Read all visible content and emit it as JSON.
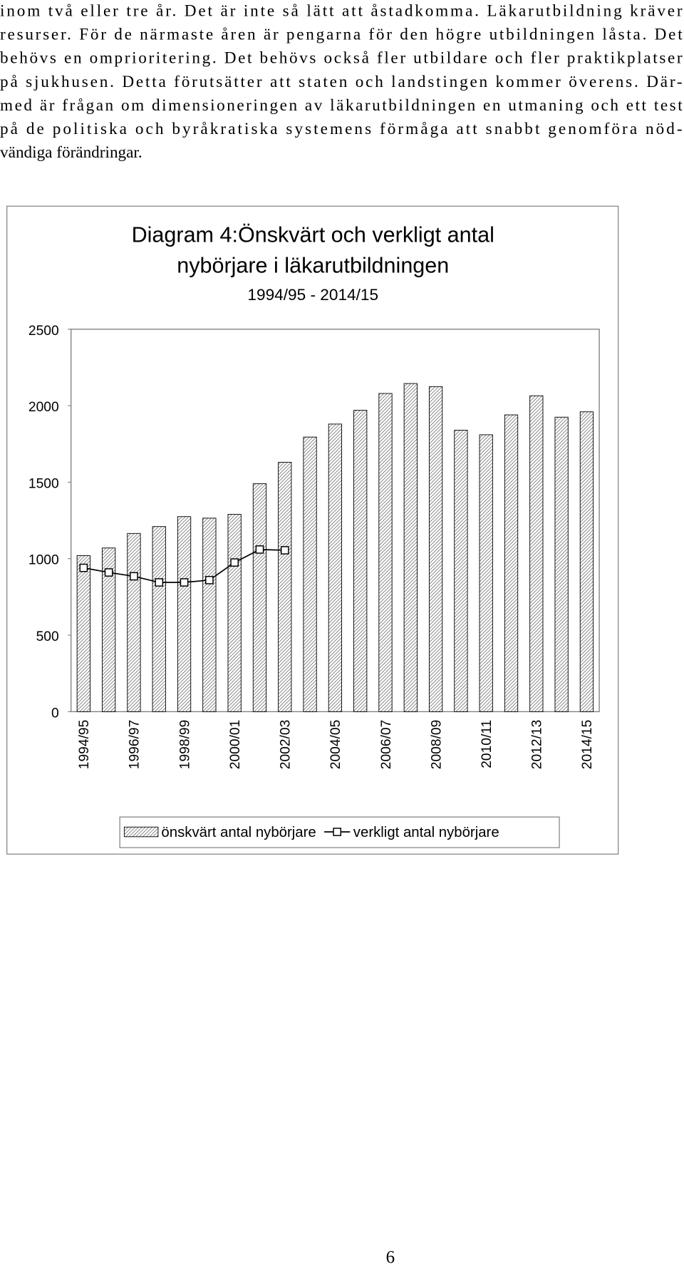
{
  "document": {
    "paragraph_lines": [
      "inom två eller tre år. Det är inte så lätt att åstadkomma. Läkarutbildning kräver",
      "resurser. För de närmaste åren är pengarna för den högre utbildningen låsta. Det",
      "behövs en omprioritering. Det behövs också fler utbildare och fler praktikplatser",
      "på sjukhusen. Detta förutsätter att staten och landstingen kommer överens. Där-",
      "med är frågan om dimensioneringen av läkarutbildningen en utmaning och ett test",
      "på de politiska och byråkratiska systemens förmåga att snabbt genomföra nöd-",
      "vändiga förändringar."
    ],
    "page_number": "6"
  },
  "chart_data": {
    "type": "bar",
    "title_lines": [
      "Diagram 4:Önskvärt och verkligt antal",
      "nybörjare i läkarutbildningen"
    ],
    "subtitle": "1994/95 - 2014/15",
    "categories": [
      "1994/95",
      null,
      "1996/97",
      null,
      "1998/99",
      null,
      "2000/01",
      null,
      "2002/03",
      null,
      "2004/05",
      null,
      "2006/07",
      null,
      "2008/09",
      null,
      "2010/11",
      null,
      "2012/13",
      null,
      "2014/15"
    ],
    "series": [
      {
        "name": "önskvärt antal nybörjare",
        "type": "bar",
        "color": "#555555",
        "values": [
          1020,
          1070,
          1165,
          1210,
          1275,
          1265,
          1290,
          1490,
          1630,
          1795,
          1880,
          1970,
          2080,
          2145,
          2125,
          1840,
          1810,
          1940,
          2065,
          1925,
          1960
        ]
      },
      {
        "name": "verkligt antal nybörjare",
        "type": "line",
        "color": "#000000",
        "values": [
          940,
          910,
          885,
          845,
          845,
          860,
          975,
          1060,
          1055,
          null,
          null,
          null,
          null,
          null,
          null,
          null,
          null,
          null,
          null,
          null,
          null
        ]
      }
    ],
    "ylim": [
      0,
      2500
    ],
    "yticks": [
      0,
      500,
      1000,
      1500,
      2000,
      2500
    ],
    "grid": false,
    "legend": "bottom"
  }
}
